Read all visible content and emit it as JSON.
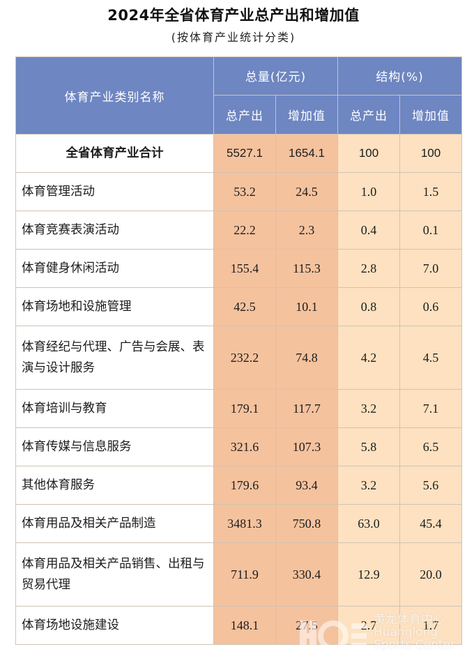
{
  "title": "2024年全省体育产业总产出和增加值",
  "subtitle": "(按体育产业统计分类)",
  "header": {
    "category": "体育产业类别名称",
    "total_group": "总量(亿元)",
    "structure_group": "结构(%)",
    "output": "总产出",
    "value_added": "增加值",
    "output2": "总产出",
    "value_added2": "增加值"
  },
  "rows": [
    {
      "name": "全省体育产业合计",
      "output": "5527.1",
      "added": "1654.1",
      "output_pct": "100",
      "added_pct": "100"
    },
    {
      "name": "体育管理活动",
      "output": "53.2",
      "added": "24.5",
      "output_pct": "1.0",
      "added_pct": "1.5"
    },
    {
      "name": "体育竞赛表演活动",
      "output": "22.2",
      "added": "2.3",
      "output_pct": "0.4",
      "added_pct": "0.1"
    },
    {
      "name": "体育健身休闲活动",
      "output": "155.4",
      "added": "115.3",
      "output_pct": "2.8",
      "added_pct": "7.0"
    },
    {
      "name": "体育场地和设施管理",
      "output": "42.5",
      "added": "10.1",
      "output_pct": "0.8",
      "added_pct": "0.6"
    },
    {
      "name": "体育经纪与代理、广告与会展、表演与设计服务",
      "output": "232.2",
      "added": "74.8",
      "output_pct": "4.2",
      "added_pct": "4.5"
    },
    {
      "name": "体育培训与教育",
      "output": "179.1",
      "added": "117.7",
      "output_pct": "3.2",
      "added_pct": "7.1"
    },
    {
      "name": "体育传媒与信息服务",
      "output": "321.6",
      "added": "107.3",
      "output_pct": "5.8",
      "added_pct": "6.5"
    },
    {
      "name": "其他体育服务",
      "output": "179.6",
      "added": "93.4",
      "output_pct": "3.2",
      "added_pct": "5.6"
    },
    {
      "name": "体育用品及相关产品制造",
      "output": "3481.3",
      "added": "750.8",
      "output_pct": "63.0",
      "added_pct": "45.4"
    },
    {
      "name": "体育用品及相关产品销售、出租与贸易代理",
      "output": "711.9",
      "added": "330.4",
      "output_pct": "12.9",
      "added_pct": "20.0"
    },
    {
      "name": "体育场地设施建设",
      "output": "148.1",
      "added": "27.5",
      "output_pct": "2.7",
      "added_pct": "1.7"
    }
  ],
  "watermark": {
    "line1": "黄龙体育中心",
    "line2": "Huanglong",
    "line3": "Sports Center"
  },
  "colors": {
    "header_bg": "#6e86c1",
    "amount_bg": "#f5c29e",
    "structure_bg": "#fde1c0"
  }
}
